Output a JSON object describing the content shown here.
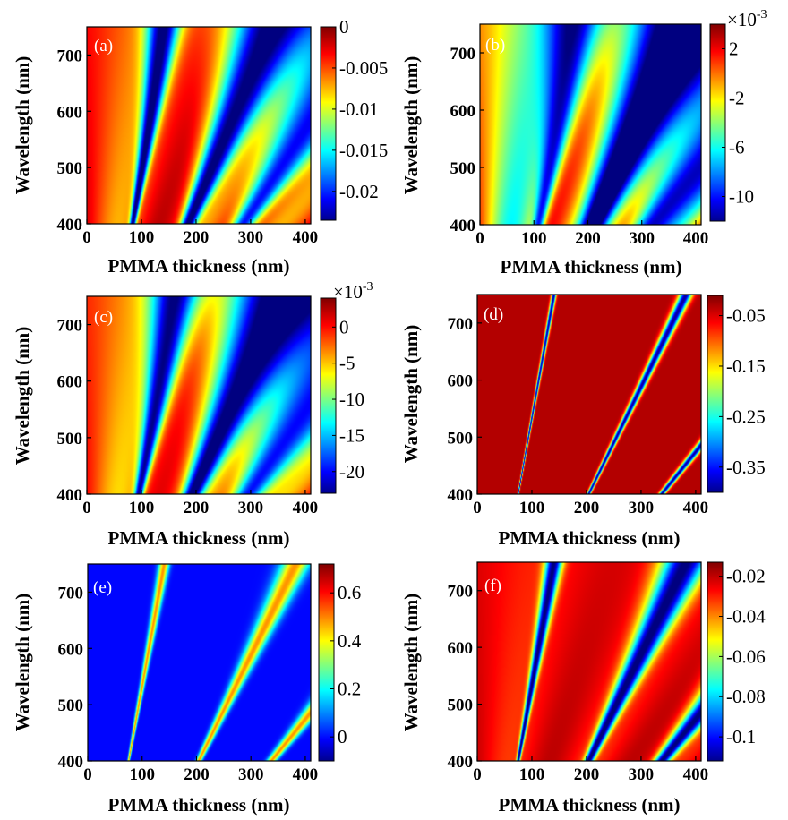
{
  "chart_data": [
    {
      "type": "heatmap",
      "panel_label": "(a)",
      "xlabel": "PMMA thickness (nm)",
      "ylabel": "Wavelength (nm)",
      "xlim": [
        0,
        410
      ],
      "ylim": [
        400,
        750
      ],
      "x_ticks": [
        "0",
        "100",
        "200",
        "300",
        "400"
      ],
      "y_ticks": [
        "400",
        "500",
        "600",
        "700"
      ],
      "colorbar": {
        "min": -0.0235,
        "max": 0.0,
        "labels": [
          "0",
          "-0.005",
          "-0.01",
          "-0.015",
          "-0.02"
        ],
        "multiplier": ""
      },
      "pattern": {
        "baseline": 0.82,
        "band_ratios": [
          1,
          2.35,
          3.7
        ],
        "band_amplitude": 0.8,
        "band_width": 0.055,
        "band_growth": 0.1,
        "ripple": 0.12,
        "bottom_shift": 0.12
      }
    },
    {
      "type": "heatmap",
      "panel_label": "(b)",
      "xlabel": "PMMA thickness (nm)",
      "ylabel": "Wavelength (nm)",
      "xlim": [
        0,
        410
      ],
      "ylim": [
        400,
        750
      ],
      "x_ticks": [
        "0",
        "100",
        "200",
        "300",
        "400"
      ],
      "y_ticks": [
        "400",
        "500",
        "600",
        "700"
      ],
      "colorbar": {
        "min": -12,
        "max": 4,
        "labels": [
          "2",
          "-2",
          "-6",
          "-10"
        ],
        "multiplier": "×10",
        "multiplier_exp": "-3"
      },
      "pattern": {
        "baseline": 0.62,
        "band_ratios": [
          1.25,
          2.6,
          3.95
        ],
        "band_amplitude": 0.6,
        "band_width": 0.08,
        "band_growth": 0.12,
        "ripple": 0.25,
        "bottom_shift": 0.2
      }
    },
    {
      "type": "heatmap",
      "panel_label": "(c)",
      "xlabel": "PMMA thickness (nm)",
      "ylabel": "Wavelength (nm)",
      "xlim": [
        0,
        410
      ],
      "ylim": [
        400,
        750
      ],
      "x_ticks": [
        "0",
        "100",
        "200",
        "300",
        "400"
      ],
      "y_ticks": [
        "400",
        "500",
        "600",
        "700"
      ],
      "colorbar": {
        "min": -23,
        "max": 4,
        "labels": [
          "0",
          "-5",
          "-10",
          "-15",
          "-20"
        ],
        "multiplier": "×10",
        "multiplier_exp": "-3"
      },
      "pattern": {
        "baseline": 0.78,
        "band_ratios": [
          1.15,
          2.45,
          3.8
        ],
        "band_amplitude": 0.75,
        "band_width": 0.07,
        "band_growth": 0.12,
        "ripple": 0.12,
        "bottom_shift": 0.12
      }
    },
    {
      "type": "heatmap",
      "panel_label": "(d)",
      "xlabel": "PMMA thickness (nm)",
      "ylabel": "Wavelength (nm)",
      "xlim": [
        0,
        410
      ],
      "ylim": [
        400,
        750
      ],
      "x_ticks": [
        "0",
        "100",
        "200",
        "300",
        "400"
      ],
      "y_ticks": [
        "400",
        "500",
        "600",
        "700"
      ],
      "colorbar": {
        "min": -0.4,
        "max": -0.01,
        "labels": [
          "-0.05",
          "-0.15",
          "-0.25",
          "-0.35"
        ],
        "multiplier": ""
      },
      "pattern": {
        "baseline": 0.95,
        "band_ratios": [
          1,
          2.72,
          4.5
        ],
        "band_amplitude": 0.92,
        "band_width": 0.012,
        "band_growth": 0.01,
        "ripple": 0.0,
        "bottom_shift": 0.0
      }
    },
    {
      "type": "heatmap",
      "panel_label": "(e)",
      "xlabel": "PMMA thickness (nm)",
      "ylabel": "Wavelength (nm)",
      "xlim": [
        0,
        410
      ],
      "ylim": [
        400,
        750
      ],
      "x_ticks": [
        "0",
        "100",
        "200",
        "300",
        "400"
      ],
      "y_ticks": [
        "400",
        "500",
        "600",
        "700"
      ],
      "colorbar": {
        "min": -0.1,
        "max": 0.72,
        "labels": [
          "0.6",
          "0.4",
          "0.2",
          "0"
        ],
        "multiplier": ""
      },
      "pattern": {
        "baseline": 0.13,
        "band_ratios": [
          1,
          2.72,
          4.5
        ],
        "band_amplitude": -0.6,
        "band_width": 0.018,
        "band_growth": 0.03,
        "ripple": 0.0,
        "bottom_shift": 0.0
      }
    },
    {
      "type": "heatmap",
      "panel_label": "(f)",
      "xlabel": "PMMA thickness (nm)",
      "ylabel": "Wavelength (nm)",
      "xlim": [
        0,
        410
      ],
      "ylim": [
        400,
        750
      ],
      "x_ticks": [
        "0",
        "100",
        "200",
        "300",
        "400"
      ],
      "y_ticks": [
        "400",
        "500",
        "600",
        "700"
      ],
      "colorbar": {
        "min": -0.112,
        "max": -0.013,
        "labels": [
          "-0.02",
          "-0.04",
          "-0.06",
          "-0.08",
          "-0.1"
        ],
        "multiplier": ""
      },
      "pattern": {
        "baseline": 0.88,
        "band_ratios": [
          1,
          2.72,
          4.5
        ],
        "band_amplitude": 0.86,
        "band_width": 0.03,
        "band_growth": 0.05,
        "ripple": 0.06,
        "bottom_shift": 0.0
      }
    }
  ]
}
